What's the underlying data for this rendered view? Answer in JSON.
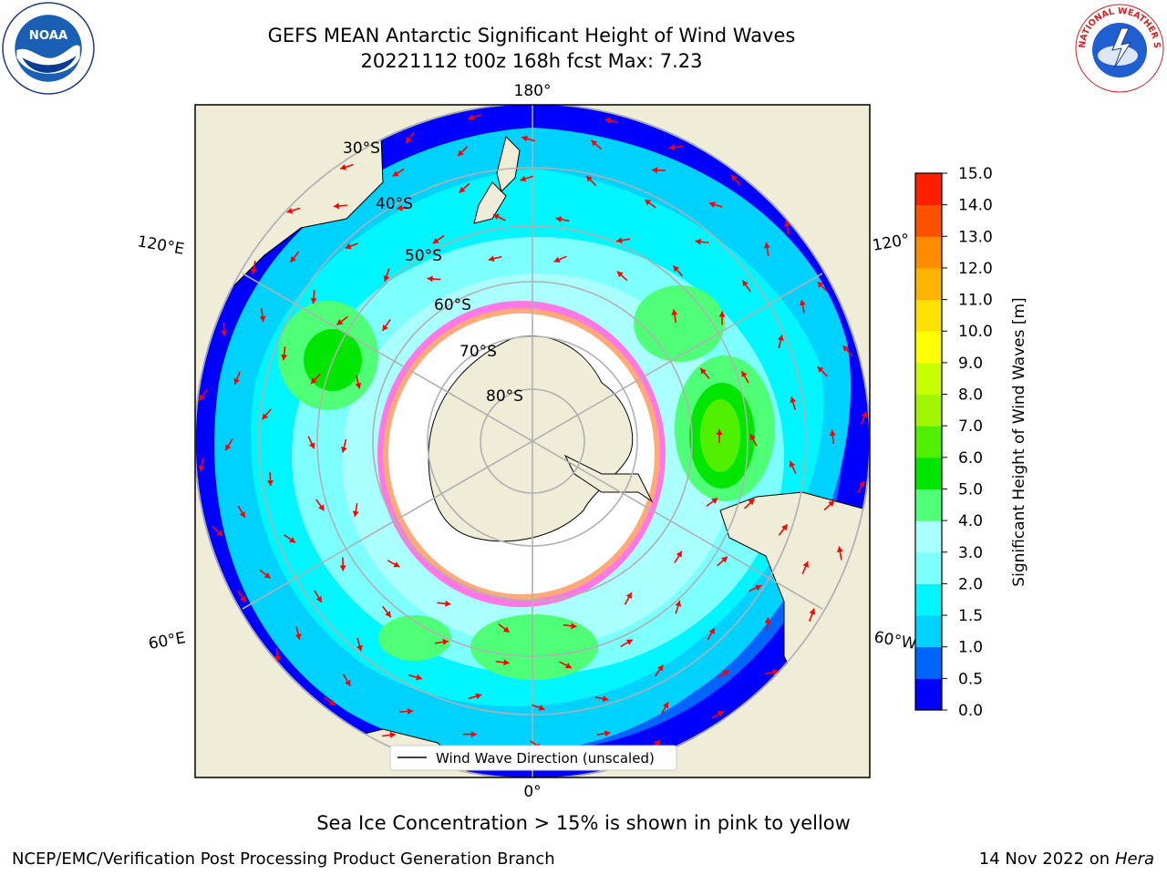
{
  "header": {
    "title_line1": "GEFS MEAN Antarctic Significant Height of Wind Waves",
    "title_line2": "20221112 t00z 168h fcst   Max: 7.23"
  },
  "logos": {
    "left": {
      "icon": "noaa-logo",
      "text": "NOAA"
    },
    "right": {
      "icon": "national-weather-service-logo",
      "text": "NATIONAL WEATHER SERVICE"
    }
  },
  "map": {
    "projection": "south-polar-stereographic",
    "longitude_labels": {
      "top": "180°",
      "bottom": "0°",
      "upper_left": "120°E",
      "upper_right": "120°",
      "lower_left": "60°E",
      "lower_right": "60°W"
    },
    "latitude_labels": [
      "30°S",
      "40°S",
      "50°S",
      "60°S",
      "70°S",
      "80°S"
    ],
    "legend_label": "Wind Wave Direction (unscaled)",
    "arrow_color": "#ff0000",
    "land_color": "#efedd8"
  },
  "colorbar": {
    "label": "Significant Height of Wind Waves [m]",
    "ticks": [
      "0.0",
      "0.5",
      "1.0",
      "1.5",
      "2.0",
      "3.0",
      "4.0",
      "5.0",
      "6.0",
      "7.0",
      "8.0",
      "9.0",
      "10.0",
      "11.0",
      "12.0",
      "13.0",
      "14.0",
      "15.0"
    ],
    "colors": [
      "#0000ff",
      "#0064ff",
      "#00d2ff",
      "#00f5ff",
      "#7dffff",
      "#aaffff",
      "#50ff78",
      "#00e600",
      "#50f000",
      "#a0f500",
      "#c8ff00",
      "#ffff00",
      "#ffe100",
      "#ffb400",
      "#ff8c00",
      "#ff5000",
      "#ff1e00",
      "#ff0000"
    ]
  },
  "footer": {
    "note": "Sea Ice Concentration > 15% is shown in pink to yellow",
    "credit": "NCEP/EMC/Verification Post Processing Product Generation Branch",
    "date": "14 Nov 2022 on",
    "host": "Hera"
  }
}
